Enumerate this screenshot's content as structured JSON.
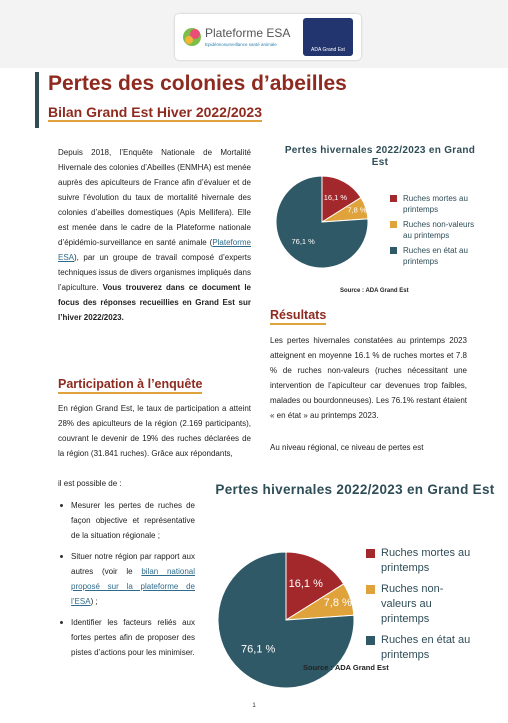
{
  "header": {
    "logo": "Plateforme ESA",
    "tagline": "Epidémiosurveillance santé animale",
    "partner": "ADA Grand Est"
  },
  "title": "Pertes des colonies d’abeilles",
  "subtitle": "Bilan Grand Est Hiver 2022/2023",
  "intro": {
    "text1": "Depuis 2018, l’Enquête Nationale de Mortalité Hivernale des colonies d’Abeilles (ENMHA) est menée auprès des apiculteurs de France afin d’évaluer et de suivre l’évolution du taux de mortalité hivernale des colonies d’abeilles domestiques (Apis Mellifera). Elle est menée dans le cadre de la Plateforme nationale d’épidémio-surveillance en santé animale (",
    "link": "Plateforme ESA",
    "text2": "), par un groupe de travail composé d’experts techniques issus de divers organismes impliqués dans l’apiculture. ",
    "bold": "Vous trouverez dans ce document le focus des réponses recueillies en Grand Est sur l’hiver 2022/2023."
  },
  "participation": {
    "heading": "Participation à l’enquête",
    "text": "En région Grand Est, le taux de participation a atteint 28% des apiculteurs de la région (2.169 participants), couvrant le devenir de 19% des ruches déclarées de la région (31.841 ruches). Grâce aux répondants,",
    "lead": "il est possible de :",
    "bullets": [
      {
        "text": "Mesurer les pertes de ruches de façon objective et représentative de la situation régionale ;"
      },
      {
        "text": "Situer notre région par rapport aux autres (voir le ",
        "link": "bilan national proposé sur la plateforme de l’ESA",
        "after": ") ;"
      },
      {
        "text": "Identifier les facteurs reliés aux fortes pertes afin de proposer des pistes d’actions pour les minimiser."
      }
    ]
  },
  "results": {
    "heading": "Résultats",
    "text": "Les pertes hivernales constatées au printemps 2023 atteignent en moyenne 16.1 % de ruches mortes et 7.8 % de ruches non-valeurs (ruches nécessitant une intervention de l’apiculteur car devenues trop faibles, malades ou bourdonneuses). Les 76.1% restant étaient « en état » au printemps 2023.",
    "text2": "Au niveau régional, ce niveau de pertes est"
  },
  "chart_data": [
    {
      "type": "pie",
      "title": "Pertes hivernales 2022/2023 en Grand Est",
      "categories": [
        "Ruches mortes au printemps",
        "Ruches non-valeurs au printemps",
        "Ruches en état au printemps"
      ],
      "values": [
        16.1,
        7.8,
        76.1
      ],
      "value_labels": [
        "16,1 %",
        "7,8 %",
        "76,1 %"
      ],
      "colors": [
        "#a3282b",
        "#e0a23a",
        "#2f5966"
      ],
      "source": "Source : ADA Grand Est"
    },
    {
      "type": "pie",
      "title": "Pertes hivernales 2022/2023 en Grand Est",
      "categories": [
        "Ruches mortes au printemps",
        "Ruches non-valeurs au printemps",
        "Ruches en état au printemps"
      ],
      "values": [
        16.1,
        7.8,
        76.1
      ],
      "value_labels": [
        "16,1 %",
        "7,8 %",
        "76,1 %"
      ],
      "colors": [
        "#a3282b",
        "#e0a23a",
        "#2f5966"
      ],
      "source": "Source : ADA Grand Est"
    }
  ],
  "page_number": "1"
}
